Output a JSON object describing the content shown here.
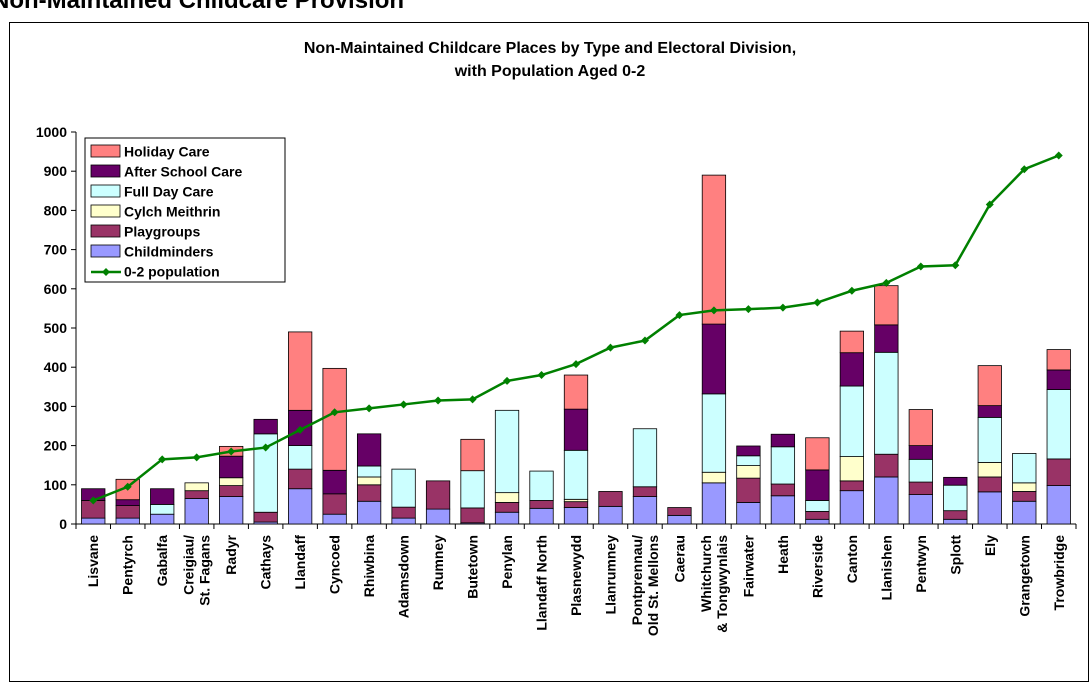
{
  "page_heading": "Non-Maintained Childcare Provision",
  "chart_data": {
    "type": "bar",
    "stacked": true,
    "title": [
      "Non-Maintained Childcare Places by Type and Electoral Division,",
      "with Population Aged 0-2"
    ],
    "xlabel": "",
    "ylabel": "",
    "ylim": [
      0,
      1000
    ],
    "yticks": [
      0,
      100,
      200,
      300,
      400,
      500,
      600,
      700,
      800,
      900,
      1000
    ],
    "grid": false,
    "legend_position": "top-left",
    "categories": [
      [
        "Lisvane"
      ],
      [
        "Pentyrch"
      ],
      [
        "Gabalfa"
      ],
      [
        "Creigiau/",
        "St. Fagans"
      ],
      [
        "Radyr"
      ],
      [
        "Cathays"
      ],
      [
        "Llandaff"
      ],
      [
        "Cyncoed"
      ],
      [
        "Rhiwbina"
      ],
      [
        "Adamsdown"
      ],
      [
        "Rumney"
      ],
      [
        "Butetown"
      ],
      [
        "Penylan"
      ],
      [
        "Llandaff North"
      ],
      [
        "Plasnewydd"
      ],
      [
        "Llanrumney"
      ],
      [
        "Pontprennau/",
        "Old St. Mellons"
      ],
      [
        "Caerau"
      ],
      [
        "Whitchurch",
        "& Tongwynlais"
      ],
      [
        "Fairwater"
      ],
      [
        "Heath"
      ],
      [
        "Riverside"
      ],
      [
        "Canton"
      ],
      [
        "Llanishen"
      ],
      [
        "Pentwyn"
      ],
      [
        "Splott"
      ],
      [
        "Ely"
      ],
      [
        "Grangetown"
      ],
      [
        "Trowbridge"
      ]
    ],
    "series": [
      {
        "name": "Childminders",
        "color": "#9999ff",
        "values": [
          15,
          15,
          25,
          65,
          70,
          5,
          90,
          25,
          58,
          15,
          38,
          3,
          30,
          40,
          42,
          45,
          70,
          22,
          105,
          55,
          72,
          12,
          85,
          120,
          75,
          12,
          82,
          58,
          98
        ]
      },
      {
        "name": "Playgroups",
        "color": "#993366",
        "values": [
          45,
          32,
          0,
          20,
          28,
          25,
          50,
          52,
          42,
          28,
          72,
          38,
          25,
          20,
          15,
          38,
          25,
          20,
          0,
          62,
          30,
          20,
          25,
          58,
          32,
          22,
          38,
          25,
          68
        ]
      },
      {
        "name": "Cylch Meithrin",
        "color": "#ffffcc",
        "values": [
          0,
          0,
          0,
          20,
          20,
          0,
          0,
          0,
          20,
          0,
          0,
          0,
          25,
          0,
          6,
          0,
          0,
          0,
          27,
          32,
          0,
          0,
          62,
          0,
          0,
          0,
          37,
          22,
          0
        ]
      },
      {
        "name": "Full Day Care",
        "color": "#ccffff",
        "values": [
          0,
          0,
          25,
          0,
          0,
          200,
          60,
          0,
          28,
          97,
          0,
          95,
          210,
          75,
          125,
          0,
          148,
          0,
          200,
          25,
          95,
          28,
          180,
          260,
          58,
          65,
          115,
          75,
          177
        ]
      },
      {
        "name": "After School Care",
        "color": "#660066",
        "values": [
          30,
          15,
          40,
          0,
          55,
          37,
          90,
          60,
          82,
          0,
          0,
          0,
          0,
          0,
          105,
          0,
          0,
          0,
          178,
          25,
          32,
          78,
          85,
          70,
          35,
          20,
          30,
          0,
          50
        ]
      },
      {
        "name": "Holiday Care",
        "color": "#ff8080",
        "values": [
          0,
          52,
          0,
          0,
          25,
          0,
          200,
          260,
          0,
          0,
          0,
          80,
          0,
          0,
          87,
          0,
          0,
          0,
          380,
          0,
          0,
          82,
          55,
          100,
          92,
          0,
          102,
          0,
          52
        ]
      }
    ],
    "line": {
      "name": "0-2 population",
      "color": "#008000",
      "values": [
        60,
        95,
        165,
        170,
        185,
        195,
        240,
        285,
        295,
        305,
        315,
        318,
        365,
        380,
        408,
        450,
        468,
        533,
        545,
        548,
        552,
        565,
        595,
        615,
        657,
        660,
        815,
        905,
        940
      ]
    },
    "legend_order": [
      "Holiday Care",
      "After School Care",
      "Full Day Care",
      "Cylch Meithrin",
      "Playgroups",
      "Childminders",
      "0-2 population"
    ]
  }
}
